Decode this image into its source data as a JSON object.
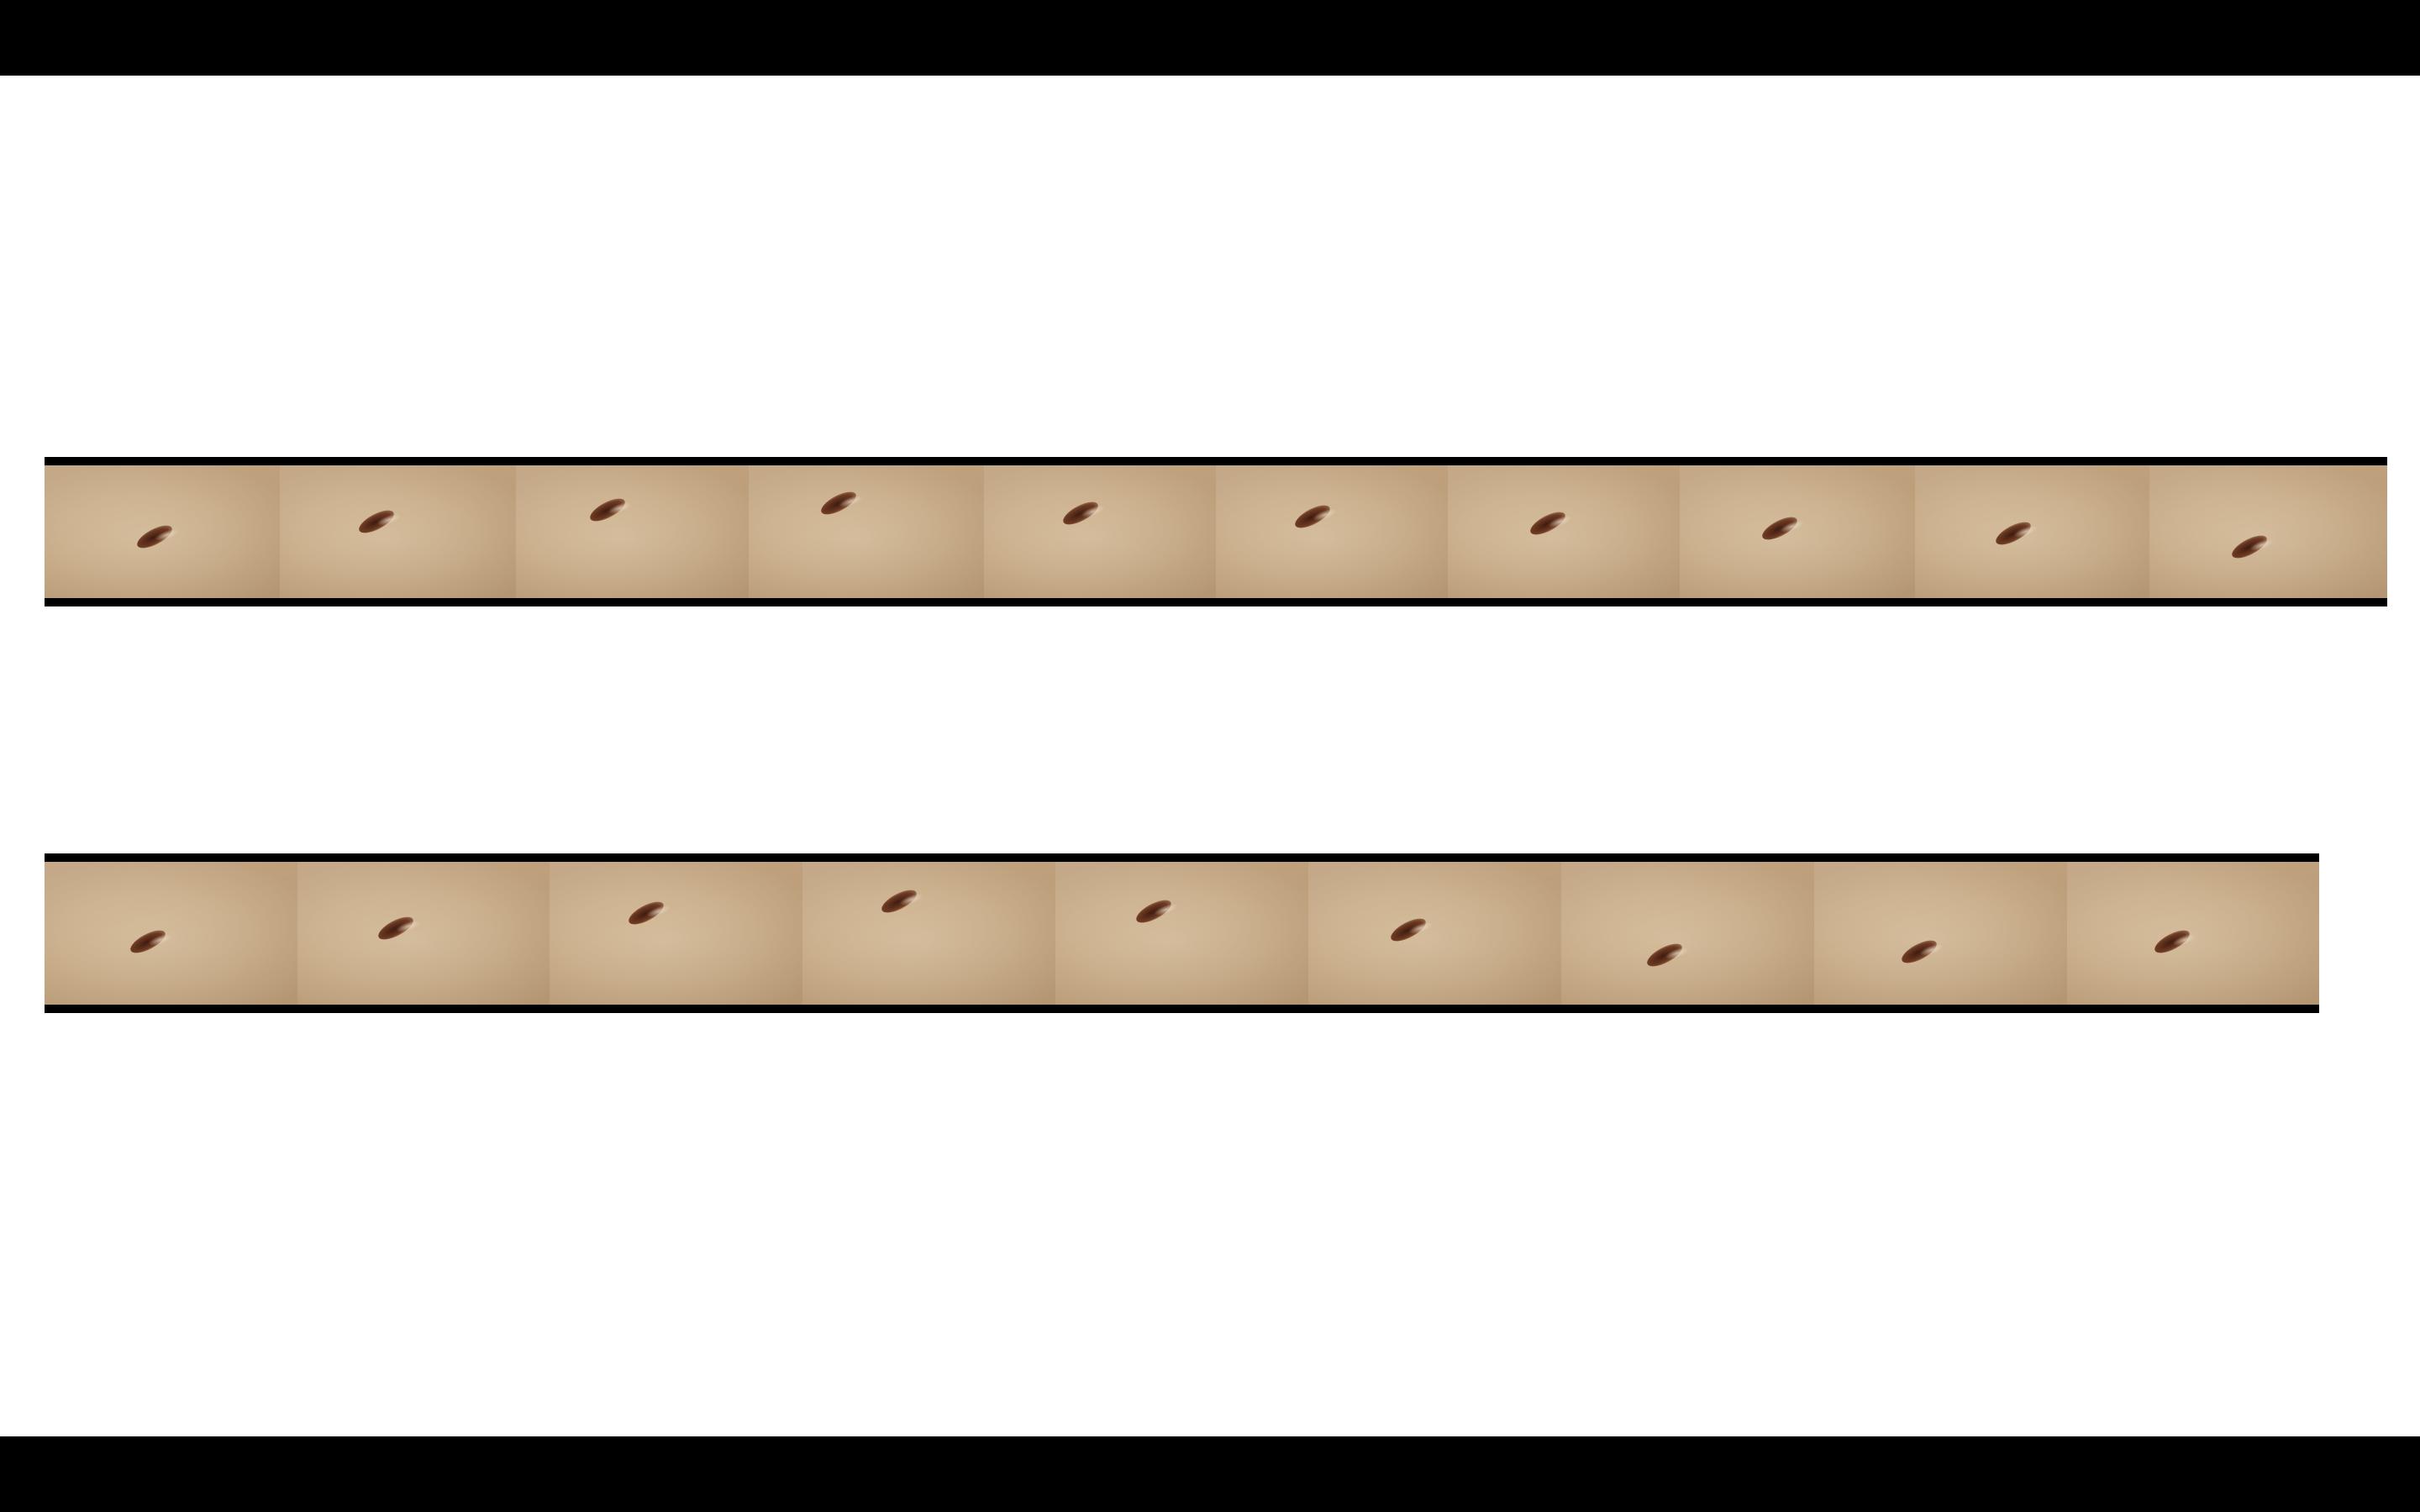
{
  "scene": {
    "background_color": "#ffffff",
    "letterbox_color": "#000000",
    "skin_color": "#ccb18e",
    "navel_color": "#5a2a18",
    "rows": [
      {
        "name": "top-strip",
        "frame_count": 10
      },
      {
        "name": "bottom-strip",
        "frame_count": 9
      }
    ]
  }
}
